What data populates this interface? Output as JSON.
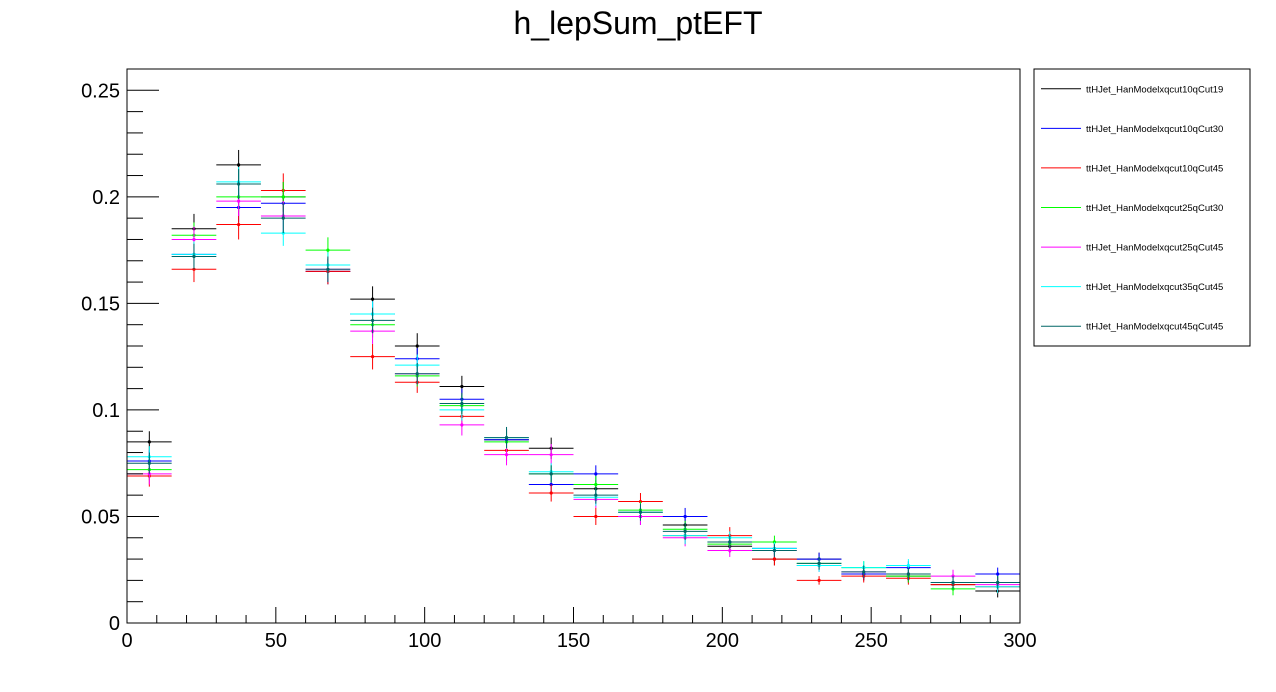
{
  "chart_data": {
    "type": "scatter",
    "title": "h_lepSum_ptEFT",
    "xlabel": "",
    "ylabel": "",
    "xlim": [
      0,
      300
    ],
    "ylim": [
      0,
      0.26
    ],
    "x_ticks": [
      0,
      50,
      100,
      150,
      200,
      250,
      300
    ],
    "x_tick_labels": [
      "0",
      "50",
      "100",
      "150",
      "200",
      "250",
      "300"
    ],
    "y_ticks": [
      0,
      0.05,
      0.1,
      0.15,
      0.2,
      0.25
    ],
    "y_tick_labels": [
      "0",
      "0.05",
      "0.1",
      "0.15",
      "0.2",
      "0.25"
    ],
    "grid": false,
    "legend_position": "right",
    "bin_edges": [
      0,
      15,
      30,
      45,
      60,
      75,
      90,
      105,
      120,
      135,
      150,
      165,
      180,
      195,
      210,
      225,
      240,
      255,
      270,
      285,
      300
    ],
    "series": [
      {
        "name": "ttHJet_HanModelxqcut10qCut19",
        "color": "#000000",
        "values": [
          0.085,
          0.185,
          0.215,
          0.2,
          0.165,
          0.152,
          0.13,
          0.111,
          0.086,
          0.082,
          0.063,
          0.05,
          0.046,
          0.036,
          0.03,
          0.03,
          0.023,
          0.022,
          0.018,
          0.015
        ],
        "errors": [
          0.005,
          0.007,
          0.007,
          0.007,
          0.006,
          0.006,
          0.006,
          0.005,
          0.005,
          0.005,
          0.004,
          0.004,
          0.004,
          0.003,
          0.003,
          0.003,
          0.003,
          0.003,
          0.003,
          0.003
        ]
      },
      {
        "name": "ttHJet_HanModelxqcut10qCut30",
        "color": "#0000ff",
        "values": [
          0.076,
          0.173,
          0.195,
          0.197,
          0.165,
          0.145,
          0.124,
          0.105,
          0.086,
          0.065,
          0.07,
          0.05,
          0.05,
          0.038,
          0.035,
          0.03,
          0.023,
          0.026,
          0.019,
          0.023
        ],
        "errors": [
          0.005,
          0.006,
          0.007,
          0.007,
          0.006,
          0.006,
          0.005,
          0.005,
          0.005,
          0.004,
          0.004,
          0.004,
          0.004,
          0.003,
          0.003,
          0.003,
          0.003,
          0.003,
          0.003,
          0.003
        ]
      },
      {
        "name": "ttHJet_HanModelxqcut10qCut45",
        "color": "#ff0000",
        "values": [
          0.069,
          0.166,
          0.187,
          0.203,
          0.165,
          0.125,
          0.113,
          0.097,
          0.081,
          0.061,
          0.05,
          0.057,
          0.041,
          0.041,
          0.03,
          0.02,
          0.022,
          0.021,
          0.018,
          0.017
        ],
        "errors": [
          0.005,
          0.006,
          0.007,
          0.008,
          0.006,
          0.006,
          0.005,
          0.005,
          0.005,
          0.004,
          0.004,
          0.004,
          0.004,
          0.004,
          0.003,
          0.002,
          0.003,
          0.003,
          0.003,
          0.003
        ]
      },
      {
        "name": "ttHJet_HanModelxqcut25qCut30",
        "color": "#00ff00",
        "values": [
          0.072,
          0.182,
          0.2,
          0.2,
          0.175,
          0.14,
          0.116,
          0.102,
          0.085,
          0.07,
          0.065,
          0.053,
          0.044,
          0.037,
          0.038,
          0.028,
          0.026,
          0.022,
          0.016,
          0.019
        ],
        "errors": [
          0.005,
          0.006,
          0.007,
          0.007,
          0.006,
          0.006,
          0.005,
          0.005,
          0.005,
          0.004,
          0.004,
          0.004,
          0.004,
          0.003,
          0.003,
          0.003,
          0.003,
          0.003,
          0.003,
          0.003
        ]
      },
      {
        "name": "ttHJet_HanModelxqcut25qCut45",
        "color": "#ff00ff",
        "values": [
          0.07,
          0.18,
          0.198,
          0.191,
          0.166,
          0.137,
          0.117,
          0.093,
          0.079,
          0.079,
          0.058,
          0.05,
          0.04,
          0.034,
          0.034,
          0.027,
          0.024,
          0.023,
          0.022,
          0.018
        ],
        "errors": [
          0.005,
          0.006,
          0.007,
          0.007,
          0.006,
          0.006,
          0.005,
          0.005,
          0.005,
          0.005,
          0.004,
          0.004,
          0.004,
          0.003,
          0.003,
          0.003,
          0.003,
          0.003,
          0.003,
          0.003
        ]
      },
      {
        "name": "ttHJet_HanModelxqcut35qCut45",
        "color": "#00ffff",
        "values": [
          0.078,
          0.173,
          0.207,
          0.183,
          0.168,
          0.145,
          0.121,
          0.1,
          0.087,
          0.071,
          0.059,
          0.052,
          0.041,
          0.04,
          0.035,
          0.027,
          0.026,
          0.027,
          0.019,
          0.017
        ],
        "errors": [
          0.005,
          0.006,
          0.007,
          0.006,
          0.006,
          0.006,
          0.005,
          0.005,
          0.005,
          0.004,
          0.004,
          0.004,
          0.004,
          0.003,
          0.003,
          0.003,
          0.003,
          0.003,
          0.003,
          0.003
        ]
      },
      {
        "name": "ttHJet_HanModelxqcut45qCut45",
        "color": "#006666",
        "values": [
          0.075,
          0.172,
          0.206,
          0.19,
          0.166,
          0.142,
          0.117,
          0.103,
          0.087,
          0.07,
          0.06,
          0.052,
          0.043,
          0.038,
          0.034,
          0.028,
          0.024,
          0.023,
          0.019,
          0.019
        ],
        "errors": [
          0.005,
          0.006,
          0.007,
          0.007,
          0.006,
          0.006,
          0.005,
          0.005,
          0.005,
          0.004,
          0.004,
          0.004,
          0.004,
          0.003,
          0.003,
          0.003,
          0.003,
          0.003,
          0.003,
          0.003
        ]
      }
    ]
  }
}
